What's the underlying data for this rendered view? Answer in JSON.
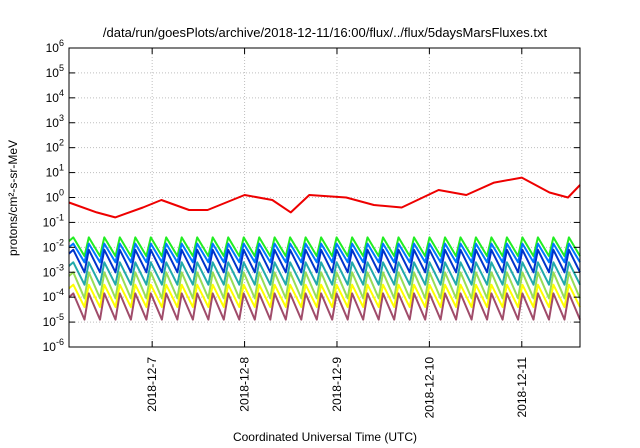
{
  "chart_data": {
    "type": "line",
    "title": "/data/run/goesPlots/archive/2018-12-11/16:00/flux/../flux/5daysMarsFluxes.txt",
    "xlabel": "Coordinated Universal Time (UTC)",
    "ylabel": "protons/cm²-s-sr-MeV",
    "y_scale": "log",
    "ylim_exp": [
      -6,
      6
    ],
    "y_tick_labels": [
      "10-6",
      "10-5",
      "10-4",
      "10-3",
      "10-2",
      "10-1",
      "100",
      "101",
      "102",
      "103",
      "104",
      "105",
      "106"
    ],
    "xlim_days": [
      0,
      5.53
    ],
    "x_ticks": [
      {
        "label": "2018-12-7",
        "day": 0.9
      },
      {
        "label": "2018-12-8",
        "day": 1.9
      },
      {
        "label": "2018-12-9",
        "day": 2.9
      },
      {
        "label": "2018-12-10",
        "day": 3.9
      },
      {
        "label": "2018-12-11",
        "day": 4.9
      }
    ],
    "grid": true,
    "legend": "none",
    "series": [
      {
        "color": "#ee0000",
        "x": [
          0.0,
          0.3,
          0.5,
          0.8,
          1.0,
          1.3,
          1.5,
          1.9,
          2.2,
          2.4,
          2.6,
          3.0,
          3.3,
          3.6,
          4.0,
          4.3,
          4.6,
          4.9,
          5.2,
          5.4,
          5.53
        ],
        "log10y": [
          -0.2,
          -0.6,
          -0.8,
          -0.4,
          -0.1,
          -0.5,
          -0.5,
          0.1,
          -0.1,
          -0.6,
          0.1,
          0.0,
          -0.3,
          -0.4,
          0.3,
          0.1,
          0.6,
          0.8,
          0.2,
          0.0,
          0.5
        ]
      },
      {
        "color": "#22ee22",
        "teeth": 33,
        "log10y_peak": -1.6,
        "log10y_trough": -2.35
      },
      {
        "color": "#0077ff",
        "teeth": 33,
        "log10y_peak": -1.85,
        "log10y_trough": -2.6
      },
      {
        "color": "#0033cc",
        "teeth": 33,
        "log10y_peak": -2.1,
        "log10y_trough": -3.0
      },
      {
        "color": "#22aaaa",
        "teeth": 33,
        "log10y_peak": -2.6,
        "log10y_trough": -3.5
      },
      {
        "color": "#99dd55",
        "teeth": 33,
        "log10y_peak": -3.0,
        "log10y_trough": -4.05
      },
      {
        "color": "#ffff00",
        "teeth": 33,
        "log10y_peak": -3.5,
        "log10y_trough": -4.4
      },
      {
        "color": "#a04c6a",
        "teeth": 33,
        "log10y_peak": -3.85,
        "log10y_trough": -4.9
      }
    ]
  }
}
